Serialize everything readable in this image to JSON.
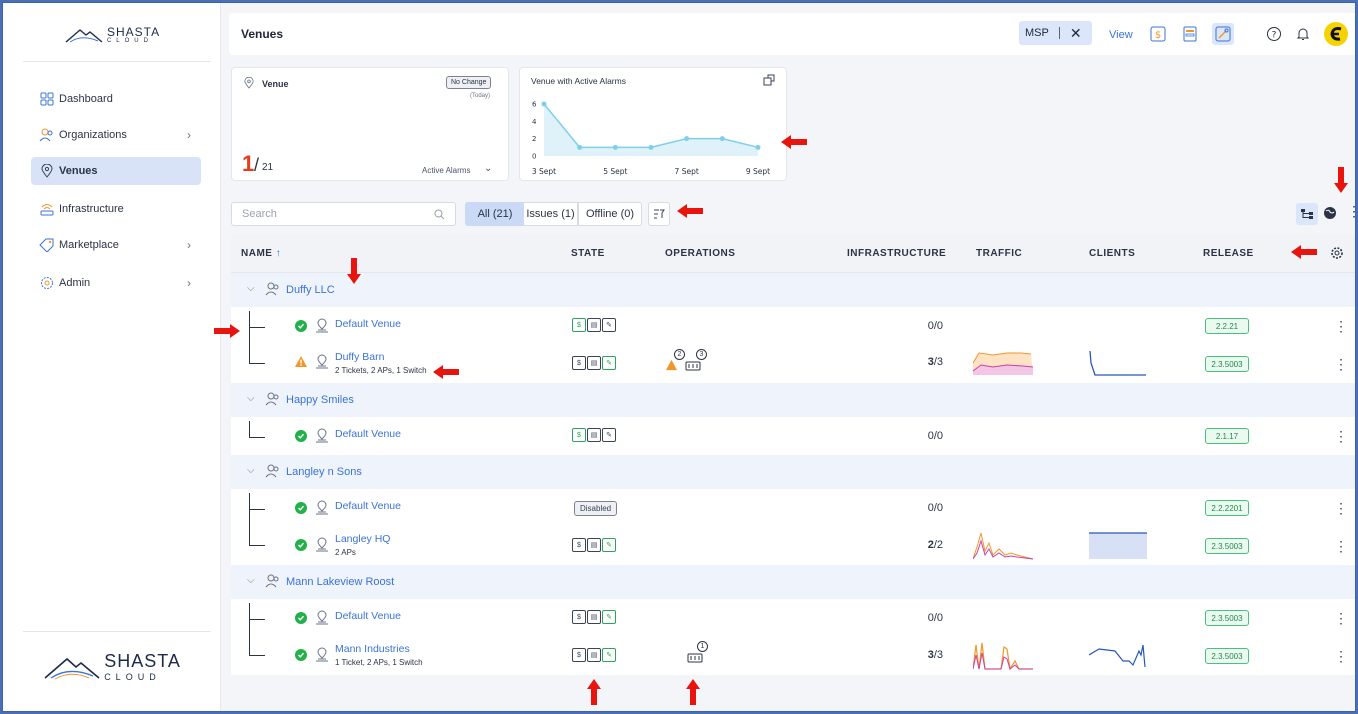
{
  "brand": {
    "name": "SHASTA",
    "sub": "CLOUD"
  },
  "sidebar": {
    "items": [
      {
        "label": "Dashboard",
        "icon": "dashboard-icon",
        "chevron": false,
        "active": false
      },
      {
        "label": "Organizations",
        "icon": "organizations-icon",
        "chevron": true,
        "active": false
      },
      {
        "label": "Venues",
        "icon": "venue-pin-icon",
        "chevron": false,
        "active": true
      },
      {
        "label": "Infrastructure",
        "icon": "wifi-router-icon",
        "chevron": false,
        "active": false
      },
      {
        "label": "Marketplace",
        "icon": "tag-icon",
        "chevron": true,
        "active": false
      },
      {
        "label": "Admin",
        "icon": "gear-icon",
        "chevron": true,
        "active": false
      }
    ]
  },
  "header": {
    "title": "Venues",
    "msp_label": "MSP",
    "close_label": "✕",
    "view_label": "View"
  },
  "venue_card": {
    "title": "Venue",
    "badge": "No Change",
    "badge_sub": "(Today)",
    "count_active": "1",
    "count_total": "21",
    "footer_label": "Active Alarms"
  },
  "alarm_card": {
    "title": "Venue with Active Alarms"
  },
  "chart_data": {
    "type": "line",
    "x": [
      "3 Sept",
      "4 Sept",
      "5 Sept",
      "6 Sept",
      "7 Sept",
      "8 Sept",
      "9 Sept"
    ],
    "x_ticks_shown": [
      "3 Sept",
      "5 Sept",
      "7 Sept",
      "9 Sept"
    ],
    "series": [
      {
        "values": [
          6,
          1,
          1,
          1,
          2,
          2,
          1
        ]
      }
    ],
    "ylim": [
      0,
      6
    ],
    "yticks": [
      0,
      2,
      4,
      6
    ],
    "grid": false,
    "color": "#7fcfe8"
  },
  "search": {
    "placeholder": "Search"
  },
  "filters": {
    "all": "All (21)",
    "issues": "Issues (1)",
    "offline": "Offline (0)"
  },
  "table": {
    "headers": {
      "name": "NAME",
      "state": "STATE",
      "operations": "OPERATIONS",
      "infrastructure": "INFRASTRUCTURE",
      "traffic": "TRAFFIC",
      "clients": "CLIENTS",
      "release": "RELEASE"
    },
    "groups": [
      {
        "name": "Duffy LLC",
        "venues": [
          {
            "name": "Default Venue",
            "sub": "",
            "status": "ok",
            "state": "icons",
            "up": "0",
            "total": "0",
            "release": "2.2.21",
            "ops": ""
          },
          {
            "name": "Duffy Barn",
            "sub": "2 Tickets, 2 APs, 1 Switch",
            "status": "warn",
            "state": "icons",
            "up": "3",
            "total": "3",
            "release": "2.3.5003",
            "ops": "alarms",
            "ops_counts": [
              "2",
              "3"
            ]
          }
        ]
      },
      {
        "name": "Happy Smiles",
        "venues": [
          {
            "name": "Default Venue",
            "sub": "",
            "status": "ok",
            "state": "icons",
            "up": "0",
            "total": "0",
            "release": "2.1.17",
            "ops": ""
          }
        ]
      },
      {
        "name": "Langley n Sons",
        "venues": [
          {
            "name": "Default Venue",
            "sub": "",
            "status": "ok",
            "state": "Disabled",
            "up": "0",
            "total": "0",
            "release": "2.2.2201",
            "ops": ""
          },
          {
            "name": "Langley HQ",
            "sub": "2 APs",
            "status": "ok",
            "state": "icons",
            "up": "2",
            "total": "2",
            "release": "2.3.5003",
            "ops": ""
          }
        ]
      },
      {
        "name": "Mann Lakeview Roost",
        "venues": [
          {
            "name": "Default Venue",
            "sub": "",
            "status": "ok",
            "state": "icons",
            "up": "0",
            "total": "0",
            "release": "2.3.5003",
            "ops": ""
          },
          {
            "name": "Mann Industries",
            "sub": "1 Ticket, 2 APs, 1 Switch",
            "status": "ok",
            "state": "icons",
            "up": "3",
            "total": "3",
            "release": "2.3.5003",
            "ops": "ticket",
            "ops_counts": [
              "1"
            ]
          }
        ]
      }
    ]
  },
  "colors": {
    "accent": "#3b73d6",
    "ok": "#22b04b",
    "warn": "#f0972b",
    "arrow": "#e8150f"
  }
}
